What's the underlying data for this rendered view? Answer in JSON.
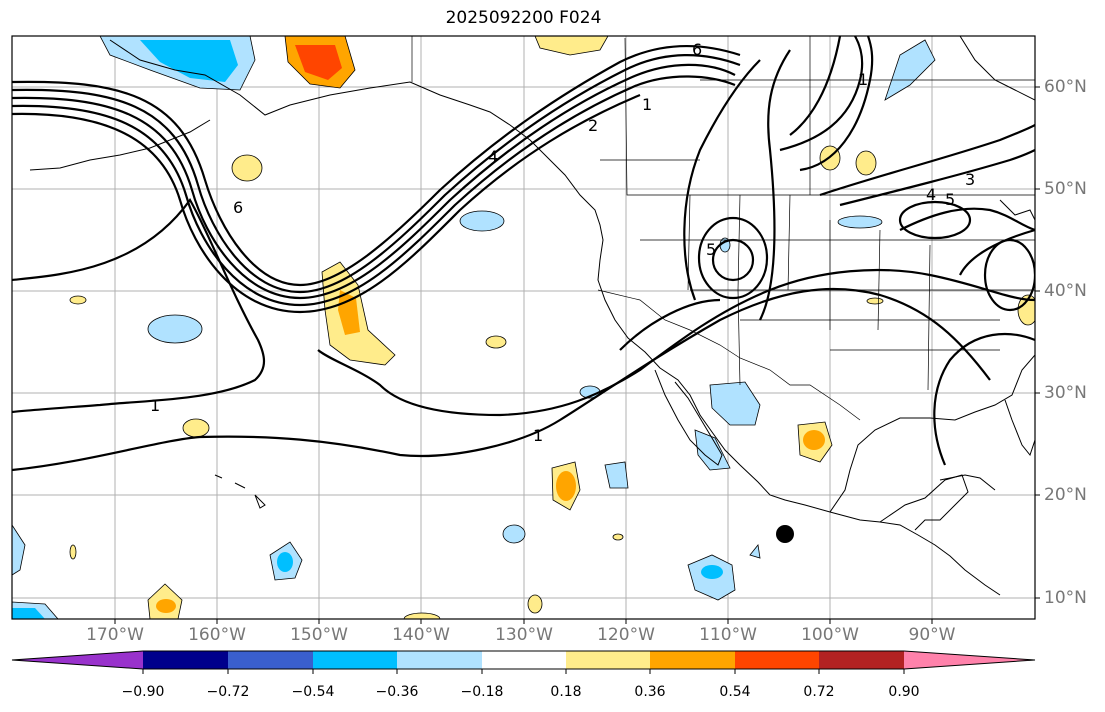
{
  "title": "2025092200 F024",
  "lat_labels": [
    "60°N",
    "50°N",
    "40°N",
    "30°N",
    "20°N",
    "10°N"
  ],
  "lon_labels": [
    "170°W",
    "160°W",
    "150°W",
    "140°W",
    "130°W",
    "120°W",
    "110°W",
    "100°W",
    "90°W"
  ],
  "contour_labels": [
    "1",
    "1",
    "1",
    "2",
    "3",
    "4",
    "4",
    "5",
    "5",
    "6",
    "6",
    "1"
  ],
  "colorbar": {
    "ticks": [
      "−0.90",
      "−0.72",
      "−0.54",
      "−0.36",
      "−0.18",
      "0.18",
      "0.36",
      "0.54",
      "0.72",
      "0.90"
    ],
    "colors": [
      "#9932cc",
      "#00008b",
      "#3a5fcd",
      "#00bfff",
      "#b0e2ff",
      "#ffffff",
      "#ffec8b",
      "#ffa500",
      "#ff4500",
      "#b22222",
      "#ff82ab"
    ]
  },
  "marker": "storm-position-dot"
}
